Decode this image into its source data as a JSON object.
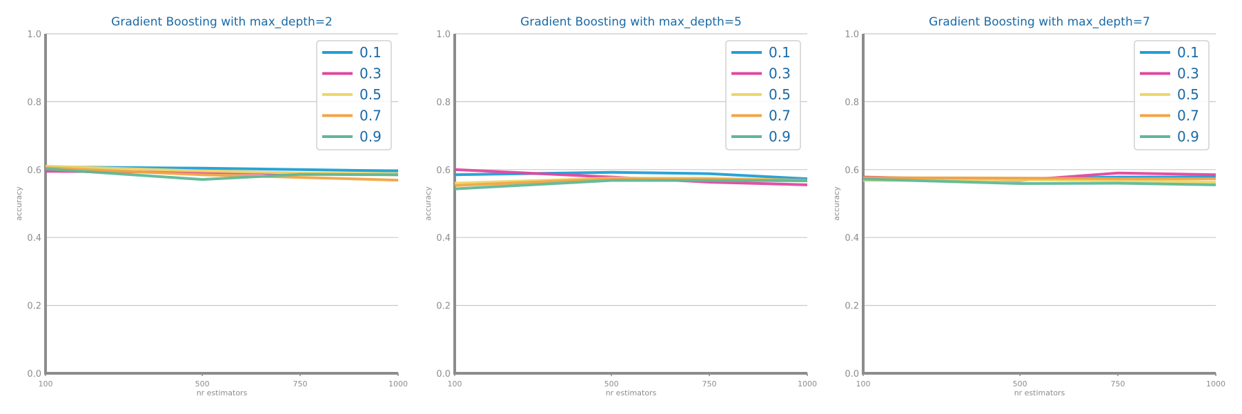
{
  "chart_data": [
    {
      "type": "line",
      "title": "Gradient Boosting with max_depth=2",
      "xlabel": "nr estimators",
      "ylabel": "accuracy",
      "x": [
        100,
        500,
        750,
        1000
      ],
      "xticks": [
        "100",
        "500",
        "750",
        "1000"
      ],
      "ylim": [
        0,
        1
      ],
      "yticks": [
        "0.0",
        "0.2",
        "0.4",
        "0.6",
        "0.8",
        "1.0"
      ],
      "grid": "horizontal",
      "legend": "top-right",
      "series": [
        {
          "name": "0.1",
          "color": "#1f9fd6",
          "values": [
            0.608,
            0.604,
            0.6,
            0.596
          ]
        },
        {
          "name": "0.3",
          "color": "#e0479e",
          "values": [
            0.595,
            0.592,
            0.588,
            0.585
          ]
        },
        {
          "name": "0.5",
          "color": "#eed768",
          "values": [
            0.61,
            0.596,
            0.59,
            0.588
          ]
        },
        {
          "name": "0.7",
          "color": "#f0a546",
          "values": [
            0.605,
            0.585,
            0.577,
            0.569
          ]
        },
        {
          "name": "0.9",
          "color": "#5fb896",
          "values": [
            0.602,
            0.571,
            0.586,
            0.585
          ]
        }
      ]
    },
    {
      "type": "line",
      "title": "Gradient Boosting with max_depth=5",
      "xlabel": "nr estimators",
      "ylabel": "accuracy",
      "x": [
        100,
        500,
        750,
        1000
      ],
      "xticks": [
        "100",
        "500",
        "750",
        "1000"
      ],
      "ylim": [
        0,
        1
      ],
      "yticks": [
        "0.0",
        "0.2",
        "0.4",
        "0.6",
        "0.8",
        "1.0"
      ],
      "grid": "horizontal",
      "legend": "top-right",
      "series": [
        {
          "name": "0.1",
          "color": "#1f9fd6",
          "values": [
            0.585,
            0.592,
            0.588,
            0.573
          ]
        },
        {
          "name": "0.3",
          "color": "#e0479e",
          "values": [
            0.6,
            0.578,
            0.563,
            0.555
          ]
        },
        {
          "name": "0.5",
          "color": "#eed768",
          "values": [
            0.56,
            0.575,
            0.575,
            0.568
          ]
        },
        {
          "name": "0.7",
          "color": "#f0a546",
          "values": [
            0.553,
            0.573,
            0.572,
            0.568
          ]
        },
        {
          "name": "0.9",
          "color": "#5fb896",
          "values": [
            0.543,
            0.568,
            0.568,
            0.567
          ]
        }
      ]
    },
    {
      "type": "line",
      "title": "Gradient Boosting with max_depth=7",
      "xlabel": "nr estimators",
      "ylabel": "accuracy",
      "x": [
        100,
        500,
        750,
        1000
      ],
      "xticks": [
        "100",
        "500",
        "750",
        "1000"
      ],
      "ylim": [
        0,
        1
      ],
      "yticks": [
        "0.0",
        "0.2",
        "0.4",
        "0.6",
        "0.8",
        "1.0"
      ],
      "grid": "horizontal",
      "legend": "top-right",
      "series": [
        {
          "name": "0.1",
          "color": "#1f9fd6",
          "values": [
            0.575,
            0.573,
            0.578,
            0.578
          ]
        },
        {
          "name": "0.3",
          "color": "#e0479e",
          "values": [
            0.578,
            0.568,
            0.59,
            0.585
          ]
        },
        {
          "name": "0.5",
          "color": "#eed768",
          "values": [
            0.568,
            0.57,
            0.568,
            0.563
          ]
        },
        {
          "name": "0.7",
          "color": "#f0a546",
          "values": [
            0.576,
            0.575,
            0.573,
            0.573
          ]
        },
        {
          "name": "0.9",
          "color": "#5fb896",
          "values": [
            0.572,
            0.559,
            0.56,
            0.555
          ]
        }
      ]
    }
  ]
}
